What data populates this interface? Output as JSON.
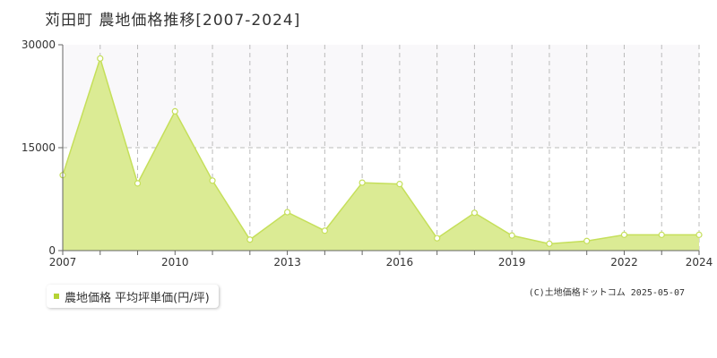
{
  "page": {
    "title": "苅田町 農地価格推移[2007-2024]",
    "credit": "(C)土地価格ドットコム 2025-05-07"
  },
  "colors": {
    "fill": "#dbeb94",
    "line": "#c5df5a",
    "point_fill": "#ffffff",
    "grid": "#bbbbbb",
    "axis": "#666666",
    "upper_band": "#f9f8fa",
    "legend_swatch": "#b5d334"
  },
  "chart_data": {
    "type": "area",
    "title": "",
    "xlabel": "",
    "ylabel": "",
    "x": [
      2007,
      2008,
      2009,
      2010,
      2011,
      2012,
      2013,
      2014,
      2015,
      2016,
      2017,
      2018,
      2019,
      2020,
      2021,
      2022,
      2023,
      2024
    ],
    "series": [
      {
        "name": "農地価格 平均坪単価(円/坪)",
        "values": [
          11000,
          28000,
          9800,
          20300,
          10200,
          1600,
          5600,
          2900,
          9900,
          9700,
          1800,
          5500,
          2200,
          1000,
          1400,
          2300,
          2300,
          2300
        ]
      }
    ],
    "xlim": [
      2007,
      2024
    ],
    "ylim": [
      0,
      30000
    ],
    "y_ticks": [
      "0",
      "15000",
      "30000"
    ],
    "x_ticks": [
      "2007",
      "2010",
      "2013",
      "2016",
      "2019",
      "2022",
      "2024"
    ],
    "x_tick_values": [
      2007,
      2010,
      2013,
      2016,
      2019,
      2022,
      2024
    ],
    "grid": true,
    "legend_position": "bottom-left"
  }
}
